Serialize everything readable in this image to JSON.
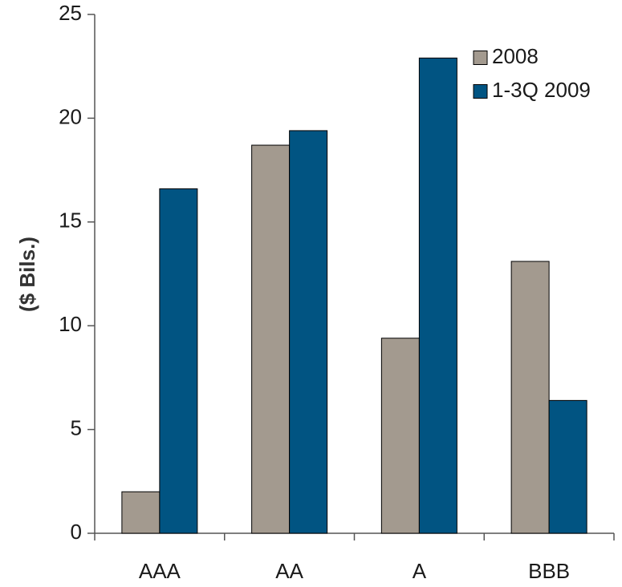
{
  "chart_data": {
    "type": "bar",
    "title": "",
    "xlabel": "",
    "ylabel": "($ Bils.)",
    "categories": [
      "AAA",
      "AA",
      "A",
      "BBB"
    ],
    "series": [
      {
        "name": "2008",
        "values": [
          2.0,
          18.7,
          9.4,
          13.1
        ],
        "color": "#a39a8f"
      },
      {
        "name": "1-3Q 2009",
        "values": [
          16.6,
          19.4,
          22.9,
          6.4
        ],
        "color": "#015482"
      }
    ],
    "ylim": [
      0,
      25
    ],
    "yticks": [
      0,
      5,
      10,
      15,
      20,
      25
    ],
    "grid": false,
    "legend_position": "top-right"
  }
}
